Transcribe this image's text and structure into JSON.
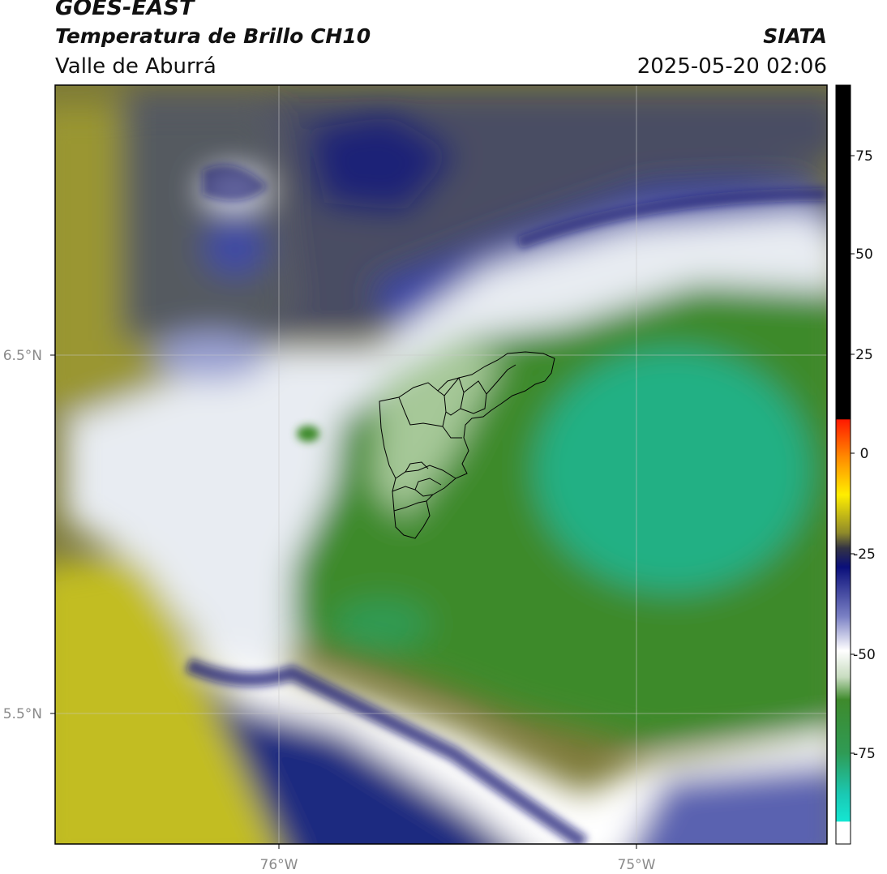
{
  "header": {
    "satellite": "GOES-EAST",
    "product": "Temperatura de Brillo CH10",
    "region": "Valle de Aburrá",
    "organization": "SIATA",
    "timestamp": "2025-05-20 02:06"
  },
  "axes": {
    "lat_ticks": [
      "6.5°N",
      "5.5°N"
    ],
    "lon_ticks": [
      "76°W",
      "75°W"
    ]
  },
  "colorbar": {
    "ticks": [
      "75",
      "50",
      "25",
      "0",
      "-25",
      "-50",
      "-75"
    ],
    "colors": {
      "high": "#000000",
      "warm": [
        "#ff0000",
        "#ff8800",
        "#ffee00"
      ],
      "olive": "#8f8a2a",
      "dark_blue": "#0a0f7a",
      "white": "#ffffff",
      "green": "#3e8a2c",
      "cyan": "#14e6d2"
    }
  }
}
